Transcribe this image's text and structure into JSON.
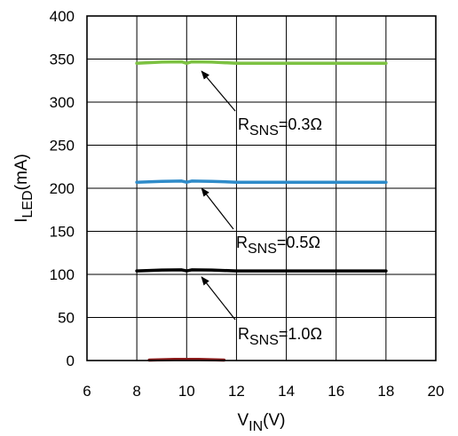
{
  "chart_data": {
    "type": "line",
    "title": "",
    "xlabel": {
      "main": "V",
      "sub": "IN",
      "rest": "(V)"
    },
    "ylabel": {
      "main": "I",
      "sub": "LED",
      "rest": "(mA)"
    },
    "xlim": [
      6,
      20
    ],
    "ylim": [
      0,
      400
    ],
    "xticks": [
      6,
      8,
      10,
      12,
      14,
      16,
      18,
      20
    ],
    "yticks": [
      0,
      50,
      100,
      150,
      200,
      250,
      300,
      350,
      400
    ],
    "grid": true,
    "legend": "none",
    "series": [
      {
        "color": "#7DC242",
        "x": [
          8,
          9,
          9.8,
          10,
          10.2,
          11,
          12,
          14,
          16,
          18
        ],
        "y": [
          345,
          346.5,
          346.8,
          345,
          346.8,
          346.5,
          345,
          345,
          345,
          345
        ]
      },
      {
        "color": "#2E8BC9",
        "x": [
          8,
          9,
          9.8,
          10,
          10.2,
          11,
          12,
          14,
          16,
          18
        ],
        "y": [
          207,
          208,
          208.3,
          207,
          208.3,
          208,
          207,
          207,
          207,
          207
        ]
      },
      {
        "color": "#000000",
        "x": [
          8,
          9,
          9.8,
          10,
          10.2,
          11,
          12,
          14,
          16,
          18
        ],
        "y": [
          104,
          105,
          105.3,
          104,
          105.3,
          105,
          104,
          104,
          104,
          104
        ]
      },
      {
        "color": "#8B1A1A",
        "x": [
          8.5,
          9.5,
          10.5,
          11.5
        ],
        "y": [
          0.5,
          1.2,
          1.2,
          0.5
        ]
      }
    ],
    "annotations": [
      {
        "main": "R",
        "sub": "SNS",
        "rest": "=0.3Ω",
        "arrow_to": [
          10.6,
          336
        ]
      },
      {
        "main": "R",
        "sub": "SNS",
        "rest": "=0.5Ω",
        "arrow_to": [
          10.6,
          200
        ]
      },
      {
        "main": "R",
        "sub": "SNS",
        "rest": "=1.0Ω",
        "arrow_to": [
          10.6,
          97
        ]
      }
    ]
  }
}
